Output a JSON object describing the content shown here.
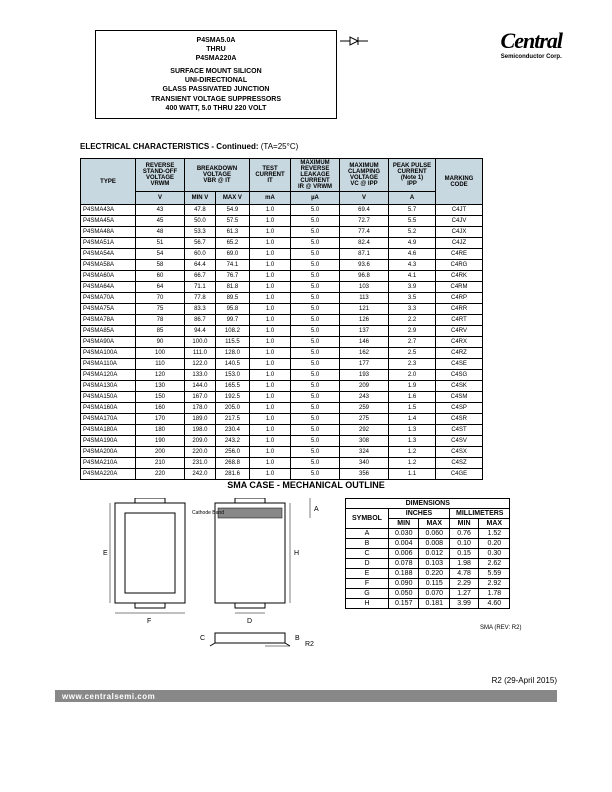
{
  "header": {
    "line1": "P4SMA5.0A",
    "line2": "THRU",
    "line3": "P4SMA220A",
    "line4": "SURFACE MOUNT SILICON",
    "line5": "UNI-DIRECTIONAL",
    "line6": "GLASS PASSIVATED JUNCTION",
    "line7": "TRANSIENT VOLTAGE SUPPRESSORS",
    "line8": "400 WATT, 5.0 THRU 220 VOLT"
  },
  "logo": {
    "brand": "Central",
    "sub": "Semiconductor Corp."
  },
  "section_title": "ELECTRICAL CHARACTERISTICS - Continued:",
  "section_cond": "(TA=25°C)",
  "table": {
    "headers": {
      "type": "TYPE",
      "vrwm": "REVERSE STAND-OFF VOLTAGE",
      "vrwm_sym": "VRWM",
      "vbr": "BREAKDOWN VOLTAGE",
      "vbr_sym": "VBR @ IT",
      "it": "TEST CURRENT",
      "it_sym": "IT",
      "ir": "MAXIMUM REVERSE LEAKAGE CURRENT",
      "ir_sym": "IR @ VRWM",
      "vc": "MAXIMUM CLAMPING VOLTAGE",
      "vc_sym": "VC @ IPP",
      "ipp": "PEAK PULSE CURRENT (Note 1)",
      "ipp_sym": "IPP",
      "marking": "MARKING CODE",
      "units_v": "V",
      "units_min": "MIN V",
      "units_max": "MAX V",
      "units_ma": "mA",
      "units_ua": "µA",
      "units_a": "A"
    },
    "rows": [
      {
        "type": "P4SMA43A",
        "vrwm": "43",
        "min": "47.8",
        "max": "54.9",
        "it": "1.0",
        "ir": "5.0",
        "vc": "69.4",
        "ipp": "5.7",
        "code": "C4JT"
      },
      {
        "type": "P4SMA45A",
        "vrwm": "45",
        "min": "50.0",
        "max": "57.5",
        "it": "1.0",
        "ir": "5.0",
        "vc": "72.7",
        "ipp": "5.5",
        "code": "C4JV"
      },
      {
        "type": "P4SMA48A",
        "vrwm": "48",
        "min": "53.3",
        "max": "61.3",
        "it": "1.0",
        "ir": "5.0",
        "vc": "77.4",
        "ipp": "5.2",
        "code": "C4JX"
      },
      {
        "type": "P4SMA51A",
        "vrwm": "51",
        "min": "56.7",
        "max": "65.2",
        "it": "1.0",
        "ir": "5.0",
        "vc": "82.4",
        "ipp": "4.9",
        "code": "C4JZ"
      },
      {
        "type": "P4SMA54A",
        "vrwm": "54",
        "min": "60.0",
        "max": "69.0",
        "it": "1.0",
        "ir": "5.0",
        "vc": "87.1",
        "ipp": "4.6",
        "code": "C4RE"
      },
      {
        "type": "P4SMA58A",
        "vrwm": "58",
        "min": "64.4",
        "max": "74.1",
        "it": "1.0",
        "ir": "5.0",
        "vc": "93.6",
        "ipp": "4.3",
        "code": "C4RG"
      },
      {
        "type": "P4SMA60A",
        "vrwm": "60",
        "min": "66.7",
        "max": "76.7",
        "it": "1.0",
        "ir": "5.0",
        "vc": "96.8",
        "ipp": "4.1",
        "code": "C4RK"
      },
      {
        "type": "P4SMA64A",
        "vrwm": "64",
        "min": "71.1",
        "max": "81.8",
        "it": "1.0",
        "ir": "5.0",
        "vc": "103",
        "ipp": "3.9",
        "code": "C4RM"
      },
      {
        "type": "P4SMA70A",
        "vrwm": "70",
        "min": "77.8",
        "max": "89.5",
        "it": "1.0",
        "ir": "5.0",
        "vc": "113",
        "ipp": "3.5",
        "code": "C4RP"
      },
      {
        "type": "P4SMA75A",
        "vrwm": "75",
        "min": "83.3",
        "max": "95.8",
        "it": "1.0",
        "ir": "5.0",
        "vc": "121",
        "ipp": "3.3",
        "code": "C4RR"
      },
      {
        "type": "P4SMA78A",
        "vrwm": "78",
        "min": "86.7",
        "max": "99.7",
        "it": "1.0",
        "ir": "5.0",
        "vc": "126",
        "ipp": "2.2",
        "code": "C4RT"
      },
      {
        "type": "P4SMA85A",
        "vrwm": "85",
        "min": "94.4",
        "max": "108.2",
        "it": "1.0",
        "ir": "5.0",
        "vc": "137",
        "ipp": "2.9",
        "code": "C4RV"
      },
      {
        "type": "P4SMA90A",
        "vrwm": "90",
        "min": "100.0",
        "max": "115.5",
        "it": "1.0",
        "ir": "5.0",
        "vc": "146",
        "ipp": "2.7",
        "code": "C4RX"
      },
      {
        "type": "P4SMA100A",
        "vrwm": "100",
        "min": "111.0",
        "max": "128.0",
        "it": "1.0",
        "ir": "5.0",
        "vc": "162",
        "ipp": "2.5",
        "code": "C4RZ"
      },
      {
        "type": "P4SMA110A",
        "vrwm": "110",
        "min": "122.0",
        "max": "140.5",
        "it": "1.0",
        "ir": "5.0",
        "vc": "177",
        "ipp": "2.3",
        "code": "C4SE"
      },
      {
        "type": "P4SMA120A",
        "vrwm": "120",
        "min": "133.0",
        "max": "153.0",
        "it": "1.0",
        "ir": "5.0",
        "vc": "193",
        "ipp": "2.0",
        "code": "C4SG"
      },
      {
        "type": "P4SMA130A",
        "vrwm": "130",
        "min": "144.0",
        "max": "165.5",
        "it": "1.0",
        "ir": "5.0",
        "vc": "209",
        "ipp": "1.9",
        "code": "C4SK"
      },
      {
        "type": "P4SMA150A",
        "vrwm": "150",
        "min": "167.0",
        "max": "192.5",
        "it": "1.0",
        "ir": "5.0",
        "vc": "243",
        "ipp": "1.6",
        "code": "C4SM"
      },
      {
        "type": "P4SMA160A",
        "vrwm": "160",
        "min": "178.0",
        "max": "205.0",
        "it": "1.0",
        "ir": "5.0",
        "vc": "259",
        "ipp": "1.5",
        "code": "C4SP"
      },
      {
        "type": "P4SMA170A",
        "vrwm": "170",
        "min": "189.0",
        "max": "217.5",
        "it": "1.0",
        "ir": "5.0",
        "vc": "275",
        "ipp": "1.4",
        "code": "C4SR"
      },
      {
        "type": "P4SMA180A",
        "vrwm": "180",
        "min": "198.0",
        "max": "230.4",
        "it": "1.0",
        "ir": "5.0",
        "vc": "292",
        "ipp": "1.3",
        "code": "C4ST"
      },
      {
        "type": "P4SMA190A",
        "vrwm": "190",
        "min": "209.0",
        "max": "243.2",
        "it": "1.0",
        "ir": "5.0",
        "vc": "308",
        "ipp": "1.3",
        "code": "C4SV"
      },
      {
        "type": "P4SMA200A",
        "vrwm": "200",
        "min": "220.0",
        "max": "256.0",
        "it": "1.0",
        "ir": "5.0",
        "vc": "324",
        "ipp": "1.2",
        "code": "C4SX"
      },
      {
        "type": "P4SMA210A",
        "vrwm": "210",
        "min": "231.0",
        "max": "268.8",
        "it": "1.0",
        "ir": "5.0",
        "vc": "340",
        "ipp": "1.2",
        "code": "C4SZ"
      },
      {
        "type": "P4SMA220A",
        "vrwm": "220",
        "min": "242.0",
        "max": "281.6",
        "it": "1.0",
        "ir": "5.0",
        "vc": "356",
        "ipp": "1.1",
        "code": "C4GE"
      }
    ]
  },
  "sma_title": "SMA CASE - MECHANICAL OUTLINE",
  "mech": {
    "cathode": "Cathode Band"
  },
  "dims": {
    "title": "DIMENSIONS",
    "inches": "INCHES",
    "mm": "MILLIMETERS",
    "symbol": "SYMBOL",
    "min": "MIN",
    "max": "MAX",
    "rows": [
      {
        "s": "A",
        "imin": "0.030",
        "imax": "0.060",
        "mmin": "0.76",
        "mmax": "1.52"
      },
      {
        "s": "B",
        "imin": "0.004",
        "imax": "0.008",
        "mmin": "0.10",
        "mmax": "0.20"
      },
      {
        "s": "C",
        "imin": "0.006",
        "imax": "0.012",
        "mmin": "0.15",
        "mmax": "0.30"
      },
      {
        "s": "D",
        "imin": "0.078",
        "imax": "0.103",
        "mmin": "1.98",
        "mmax": "2.62"
      },
      {
        "s": "E",
        "imin": "0.188",
        "imax": "0.220",
        "mmin": "4.78",
        "mmax": "5.59"
      },
      {
        "s": "F",
        "imin": "0.090",
        "imax": "0.115",
        "mmin": "2.29",
        "mmax": "2.92"
      },
      {
        "s": "G",
        "imin": "0.050",
        "imax": "0.070",
        "mmin": "1.27",
        "mmax": "1.78"
      },
      {
        "s": "H",
        "imin": "0.157",
        "imax": "0.181",
        "mmin": "3.99",
        "mmax": "4.60"
      }
    ],
    "rev": "SMA (REV: R2)"
  },
  "rev_date": "R2 (29-April 2015)",
  "footer": "www.centralsemi.com"
}
